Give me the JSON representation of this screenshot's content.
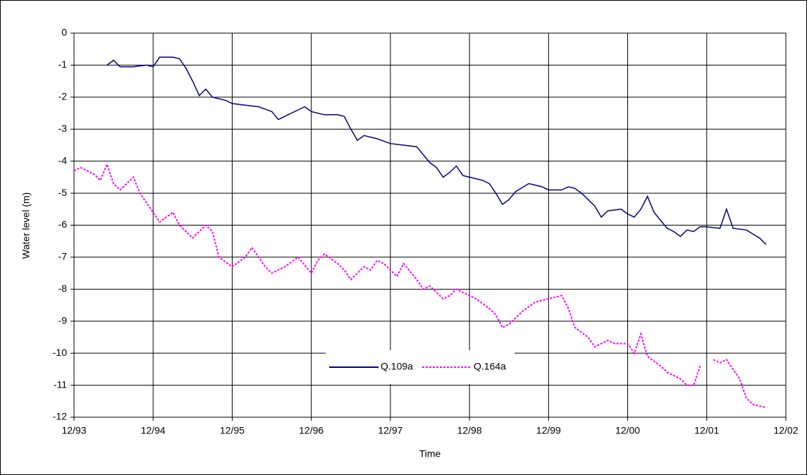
{
  "chart_data": {
    "type": "line",
    "x_label": "Time",
    "y_label": "Water level (m)",
    "xlim": [
      "12/93",
      "12/02"
    ],
    "xticks": [
      "12/93",
      "12/94",
      "12/95",
      "12/96",
      "12/97",
      "12/98",
      "12/99",
      "12/00",
      "12/01",
      "12/02"
    ],
    "ylim": [
      -12,
      0
    ],
    "yticks": [
      0,
      -1,
      -2,
      -3,
      -4,
      -5,
      -6,
      -7,
      -8,
      -9,
      -10,
      -11,
      -12
    ],
    "grid": true,
    "legend": "bottom-center",
    "series": [
      {
        "name": "Q.109a",
        "color": "#000080",
        "line_style": "solid",
        "x": [
          "05/94",
          "06/94",
          "07/94",
          "09/94",
          "11/94",
          "12/94",
          "01/95",
          "03/95",
          "04/95",
          "05/95",
          "06/95",
          "07/95",
          "08/95",
          "09/95",
          "11/95",
          "12/95",
          "02/96",
          "04/96",
          "06/96",
          "07/96",
          "08/96",
          "09/96",
          "10/96",
          "11/96",
          "12/96",
          "02/97",
          "04/97",
          "05/97",
          "06/97",
          "07/97",
          "08/97",
          "09/97",
          "10/97",
          "12/97",
          "02/98",
          "04/98",
          "05/98",
          "06/98",
          "07/98",
          "08/98",
          "09/98",
          "10/98",
          "11/98",
          "12/98",
          "02/99",
          "03/99",
          "04/99",
          "05/99",
          "06/99",
          "07/99",
          "09/99",
          "11/99",
          "12/99",
          "02/00",
          "03/00",
          "04/00",
          "05/00",
          "06/00",
          "07/00",
          "08/00",
          "09/00",
          "11/00",
          "12/00",
          "01/01",
          "02/01",
          "03/01",
          "04/01",
          "06/01",
          "07/01",
          "08/01",
          "09/01",
          "10/01",
          "11/01",
          "12/01",
          "02/02",
          "03/02",
          "04/02",
          "06/02",
          "08/02",
          "09/02"
        ],
        "values": [
          -1.0,
          -0.85,
          -1.05,
          -1.05,
          -1.0,
          -1.05,
          -0.75,
          -0.75,
          -0.8,
          -1.1,
          -1.5,
          -1.95,
          -1.75,
          -2.0,
          -2.1,
          -2.2,
          -2.25,
          -2.3,
          -2.45,
          -2.7,
          -2.6,
          -2.5,
          -2.4,
          -2.3,
          -2.45,
          -2.55,
          -2.55,
          -2.6,
          -3.0,
          -3.35,
          -3.2,
          -3.25,
          -3.3,
          -3.45,
          -3.5,
          -3.55,
          -3.8,
          -4.05,
          -4.2,
          -4.5,
          -4.35,
          -4.15,
          -4.45,
          -4.5,
          -4.6,
          -4.7,
          -5.0,
          -5.35,
          -5.2,
          -4.95,
          -4.7,
          -4.8,
          -4.9,
          -4.9,
          -4.8,
          -4.85,
          -5.0,
          -5.2,
          -5.4,
          -5.75,
          -5.55,
          -5.5,
          -5.65,
          -5.75,
          -5.5,
          -5.1,
          -5.6,
          -6.1,
          -6.2,
          -6.35,
          -6.15,
          -6.2,
          -6.05,
          -6.05,
          -6.1,
          -5.5,
          -6.1,
          -6.15,
          -6.4,
          -6.6
        ]
      },
      {
        "name": "Q.164a",
        "color": "#ff00ff",
        "line_style": "dotted",
        "x": [
          "12/93",
          "01/94",
          "03/94",
          "04/94",
          "05/94",
          "06/94",
          "07/94",
          "09/94",
          "10/94",
          "12/94",
          "01/95",
          "03/95",
          "04/95",
          "06/95",
          "08/95",
          "09/95",
          "10/95",
          "12/95",
          "02/96",
          "03/96",
          "05/96",
          "06/96",
          "08/96",
          "10/96",
          "12/96",
          "01/97",
          "02/97",
          "04/97",
          "05/97",
          "06/97",
          "08/97",
          "09/97",
          "10/97",
          "11/97",
          "01/98",
          "02/98",
          "04/98",
          "05/98",
          "06/98",
          "08/98",
          "09/98",
          "10/98",
          "12/98",
          "01/99",
          "03/99",
          "04/99",
          "05/99",
          "06/99",
          "08/99",
          "10/99",
          "12/99",
          "02/00",
          "03/00",
          "04/00",
          "06/00",
          "07/00",
          "09/00",
          "10/00",
          "12/00",
          "01/01",
          "02/01",
          "03/01",
          "05/01",
          "06/01",
          "08/01",
          "09/01",
          "10/01",
          "11/01",
          "12/01",
          "01/02",
          "02/02",
          "03/02",
          "05/02",
          "06/02",
          "07/02",
          "09/02"
        ],
        "values": [
          -4.3,
          -4.2,
          -4.4,
          -4.6,
          -4.1,
          -4.7,
          -4.9,
          -4.5,
          -5.0,
          -5.6,
          -5.9,
          -5.6,
          -6.0,
          -6.4,
          -6.0,
          -6.2,
          -7.0,
          -7.3,
          -7.0,
          -6.7,
          -7.3,
          -7.5,
          -7.3,
          -7.0,
          -7.5,
          -7.1,
          -6.9,
          -7.2,
          -7.4,
          -7.7,
          -7.3,
          -7.4,
          -7.1,
          -7.2,
          -7.6,
          -7.2,
          -7.7,
          -8.0,
          -7.9,
          -8.3,
          -8.2,
          -8.0,
          -8.2,
          -8.3,
          -8.6,
          -8.8,
          -9.2,
          -9.1,
          -8.7,
          -8.4,
          -8.3,
          -8.2,
          -8.6,
          -9.2,
          -9.5,
          -9.8,
          -9.6,
          -9.7,
          -9.7,
          -10.0,
          -9.4,
          -10.1,
          -10.4,
          -10.6,
          -10.8,
          -11.0,
          -11.0,
          -10.4,
          null,
          -10.2,
          -10.3,
          -10.2,
          -10.8,
          -11.4,
          -11.6,
          -11.7
        ]
      }
    ]
  }
}
